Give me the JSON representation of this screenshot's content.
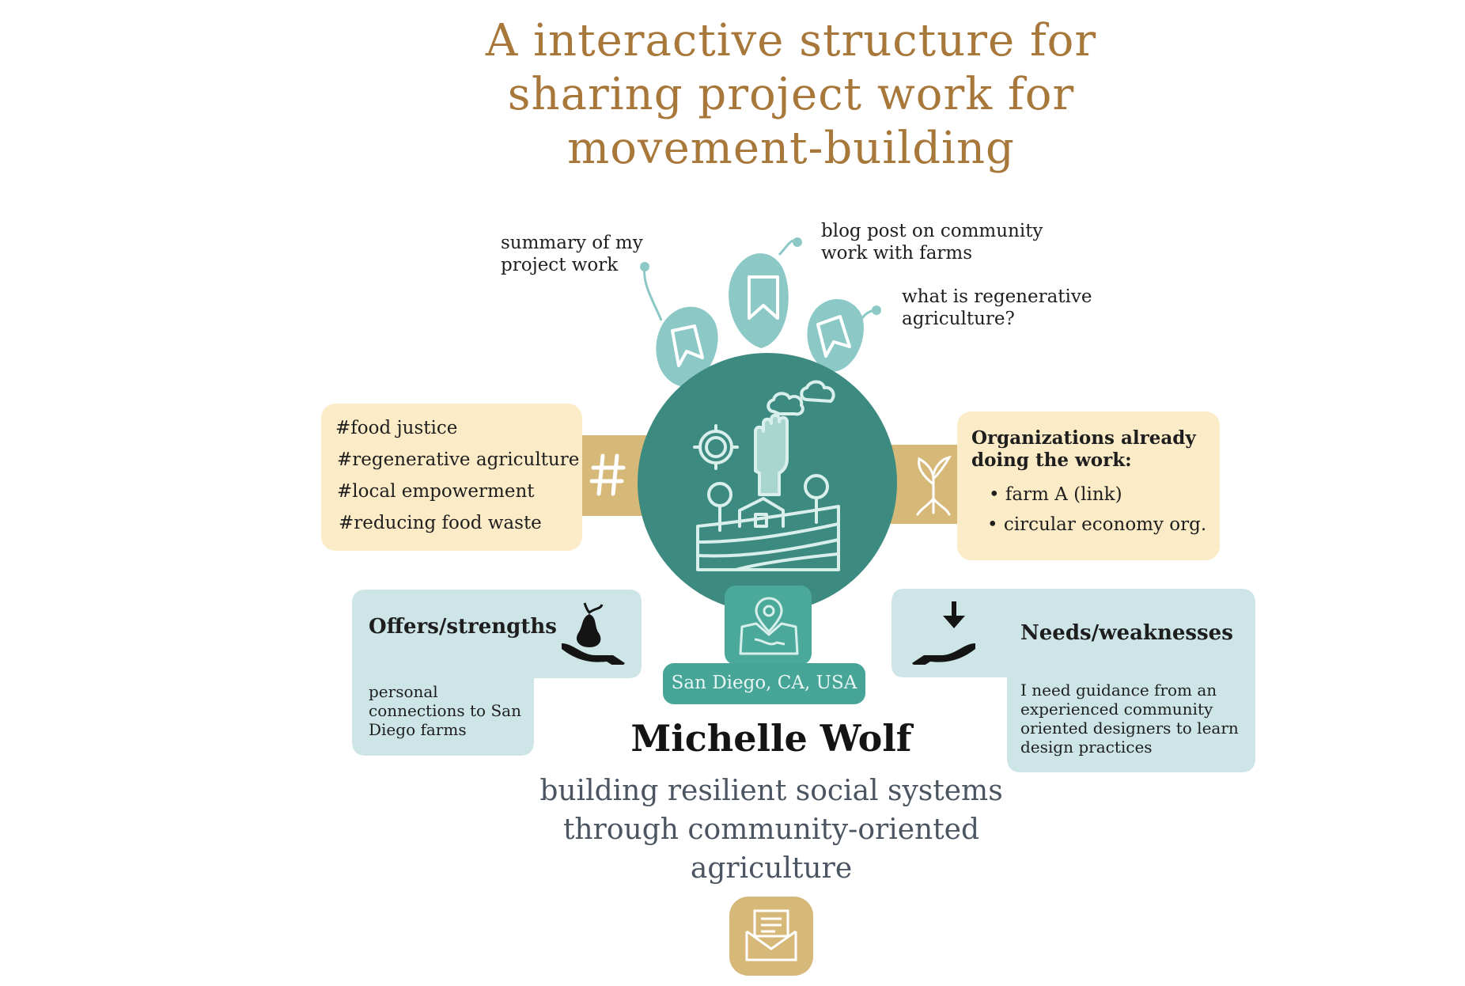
{
  "title": "A interactive structure for sharing project work for movement-building",
  "bookmarks": {
    "summary": "summary of my project work",
    "blog": "blog post on community work with farms",
    "regenerative": "what is regenerative agriculture?"
  },
  "hashtags": [
    "#food justice",
    "#regenerative agriculture",
    "#local empowerment",
    "#reducing food waste"
  ],
  "organizations": {
    "title": "Organizations already doing the work:",
    "items": [
      "• farm A (link)",
      "• circular economy org."
    ]
  },
  "location": "San Diego, CA, USA",
  "offers": {
    "title": "Offers/strengths",
    "text": "personal connections to San Diego farms"
  },
  "needs": {
    "title": "Needs/weaknesses",
    "text": "I need guidance from an experienced community oriented designers to learn design practices"
  },
  "profile": {
    "name": "Michelle Wolf",
    "tagline": "building resilient social systems through community-oriented agriculture"
  },
  "colors": {
    "title": "#a8773a",
    "circle": "#3d8a80",
    "cream": "#fcebc7",
    "gold": "#d6b879",
    "light_teal": "#8cc9c6",
    "light_blue": "#cde5e7",
    "location": "#46a597"
  },
  "icons": [
    "bookmark-icon",
    "hashtag-icon",
    "sprout-icon",
    "farm-fist-icon",
    "map-pin-icon",
    "pear-hand-icon",
    "receive-hand-icon",
    "mail-icon"
  ]
}
